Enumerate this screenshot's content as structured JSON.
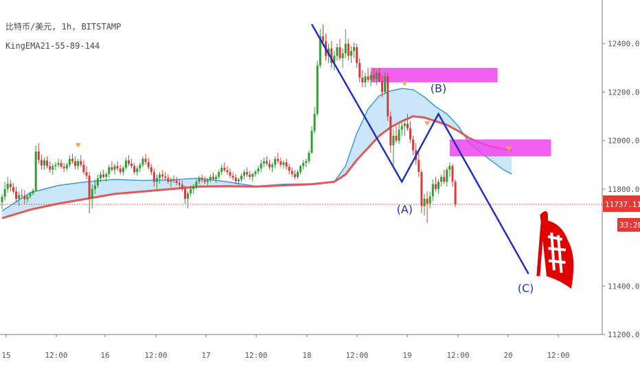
{
  "header": {
    "symbol_line": "比特币/美元, 1h, BITSTAMP",
    "indicator_line": "KingEMA21-55-89-144"
  },
  "price_badge": {
    "value": "11737.11",
    "countdown": "33:28",
    "color": "#e53935"
  },
  "chart_data": {
    "type": "candlestick",
    "x_axis_labels": [
      "15",
      "12:00",
      "16",
      "12:00",
      "17",
      "12:00",
      "18",
      "12:00",
      "19",
      "12:00",
      "20",
      "12:00"
    ],
    "y_axis_labels": [
      "12400.00",
      "12200.00",
      "12000.00",
      "11800.00",
      "11400.00",
      "11200.00"
    ],
    "ylim": [
      11200,
      12580
    ],
    "last_price": 11737.11,
    "series": [
      {
        "name": "EMA fast",
        "color": "#3a9ad9",
        "points": [
          [
            0,
            11710
          ],
          [
            10,
            11785
          ],
          [
            20,
            11815
          ],
          [
            30,
            11830
          ],
          [
            40,
            11840
          ],
          [
            50,
            11835
          ],
          [
            60,
            11838
          ],
          [
            70,
            11845
          ],
          [
            80,
            11830
          ],
          [
            90,
            11812
          ],
          [
            100,
            11820
          ],
          [
            110,
            11822
          ],
          [
            118,
            11830
          ],
          [
            122,
            11895
          ],
          [
            126,
            12030
          ],
          [
            130,
            12130
          ],
          [
            134,
            12185
          ],
          [
            138,
            12205
          ],
          [
            142,
            12215
          ],
          [
            146,
            12210
          ],
          [
            150,
            12180
          ],
          [
            154,
            12140
          ],
          [
            158,
            12110
          ],
          [
            162,
            12060
          ],
          [
            166,
            11990
          ],
          [
            170,
            11950
          ],
          [
            174,
            11915
          ],
          [
            178,
            11880
          ],
          [
            181,
            11862
          ]
        ]
      },
      {
        "name": "EMA slow",
        "color": "#e05858",
        "points": [
          [
            0,
            11680
          ],
          [
            10,
            11715
          ],
          [
            20,
            11740
          ],
          [
            30,
            11760
          ],
          [
            40,
            11780
          ],
          [
            50,
            11790
          ],
          [
            60,
            11800
          ],
          [
            70,
            11810
          ],
          [
            80,
            11812
          ],
          [
            90,
            11810
          ],
          [
            100,
            11815
          ],
          [
            110,
            11820
          ],
          [
            118,
            11830
          ],
          [
            122,
            11860
          ],
          [
            126,
            11920
          ],
          [
            130,
            11970
          ],
          [
            134,
            12020
          ],
          [
            138,
            12055
          ],
          [
            142,
            12080
          ],
          [
            146,
            12100
          ],
          [
            150,
            12095
          ],
          [
            154,
            12080
          ],
          [
            158,
            12065
          ],
          [
            162,
            12040
          ],
          [
            166,
            12010
          ],
          [
            170,
            11990
          ],
          [
            174,
            11975
          ],
          [
            178,
            11965
          ],
          [
            181,
            11960
          ]
        ]
      }
    ],
    "markers": [
      {
        "x": 27,
        "y": 11990
      },
      {
        "x": 143,
        "y": 12245
      },
      {
        "x": 151,
        "y": 12080
      },
      {
        "x": 180,
        "y": 11975
      }
    ],
    "zones": [
      {
        "color": "#ee44ee",
        "x0": 131,
        "x1": 176,
        "y0": 12240,
        "y1": 12300
      },
      {
        "color": "#ee44ee",
        "x0": 159,
        "x1": 195,
        "y0": 11935,
        "y1": 12005
      }
    ],
    "wave_line": {
      "color": "#1f2fc0",
      "points": [
        [
          110,
          12480
        ],
        [
          142,
          11830
        ],
        [
          155,
          12110
        ],
        [
          187,
          11450
        ]
      ]
    },
    "wave_labels": [
      {
        "text": "(A)",
        "x": 143,
        "y": 11700
      },
      {
        "text": "(B)",
        "x": 155,
        "y": 12200
      },
      {
        "text": "(C)",
        "x": 186,
        "y": 11375
      }
    ],
    "candles": [
      [
        11745,
        11778,
        11718,
        11768
      ],
      [
        11768,
        11830,
        11752,
        11800
      ],
      [
        11800,
        11850,
        11785,
        11822
      ],
      [
        11822,
        11840,
        11790,
        11808
      ],
      [
        11808,
        11825,
        11780,
        11790
      ],
      [
        11790,
        11810,
        11745,
        11760
      ],
      [
        11760,
        11790,
        11730,
        11775
      ],
      [
        11775,
        11800,
        11760,
        11772
      ],
      [
        11772,
        11795,
        11740,
        11758
      ],
      [
        11758,
        11780,
        11745,
        11770
      ],
      [
        11770,
        11790,
        11760,
        11782
      ],
      [
        11782,
        11802,
        11774,
        11794
      ],
      [
        11794,
        11980,
        11790,
        11955
      ],
      [
        11955,
        11990,
        11905,
        11920
      ],
      [
        11920,
        11942,
        11880,
        11898
      ],
      [
        11898,
        11930,
        11880,
        11918
      ],
      [
        11918,
        11935,
        11885,
        11895
      ],
      [
        11895,
        11915,
        11868,
        11880
      ],
      [
        11880,
        11905,
        11860,
        11895
      ],
      [
        11895,
        11912,
        11878,
        11900
      ],
      [
        11900,
        11925,
        11890,
        11908
      ],
      [
        11908,
        11922,
        11885,
        11892
      ],
      [
        11892,
        11908,
        11870,
        11885
      ],
      [
        11885,
        11910,
        11875,
        11900
      ],
      [
        11900,
        11940,
        11890,
        11925
      ],
      [
        11925,
        11945,
        11905,
        11915
      ],
      [
        11915,
        11935,
        11880,
        11895
      ],
      [
        11895,
        11925,
        11880,
        11915
      ],
      [
        11915,
        11940,
        11890,
        11900
      ],
      [
        11900,
        11920,
        11860,
        11870
      ],
      [
        11870,
        11895,
        11840,
        11855
      ],
      [
        11855,
        11870,
        11700,
        11760
      ],
      [
        11760,
        11820,
        11720,
        11800
      ],
      [
        11800,
        11840,
        11780,
        11815
      ],
      [
        11815,
        11860,
        11805,
        11845
      ],
      [
        11845,
        11872,
        11830,
        11860
      ],
      [
        11860,
        11880,
        11845,
        11850
      ],
      [
        11850,
        11870,
        11830,
        11862
      ],
      [
        11862,
        11900,
        11848,
        11890
      ],
      [
        11890,
        11915,
        11872,
        11880
      ],
      [
        11880,
        11905,
        11860,
        11895
      ],
      [
        11895,
        11915,
        11875,
        11885
      ],
      [
        11885,
        11900,
        11860,
        11870
      ],
      [
        11870,
        11895,
        11855,
        11888
      ],
      [
        11888,
        11930,
        11880,
        11918
      ],
      [
        11918,
        11940,
        11895,
        11905
      ],
      [
        11905,
        11925,
        11885,
        11895
      ],
      [
        11895,
        11908,
        11860,
        11870
      ],
      [
        11870,
        11895,
        11855,
        11885
      ],
      [
        11885,
        11910,
        11870,
        11900
      ],
      [
        11900,
        11935,
        11890,
        11925
      ],
      [
        11925,
        11945,
        11900,
        11912
      ],
      [
        11912,
        11928,
        11880,
        11890
      ],
      [
        11890,
        11905,
        11858,
        11870
      ],
      [
        11870,
        11885,
        11810,
        11830
      ],
      [
        11830,
        11860,
        11800,
        11845
      ],
      [
        11845,
        11870,
        11822,
        11860
      ],
      [
        11860,
        11878,
        11840,
        11852
      ],
      [
        11852,
        11870,
        11835,
        11846
      ],
      [
        11846,
        11860,
        11820,
        11830
      ],
      [
        11830,
        11848,
        11808,
        11840
      ],
      [
        11840,
        11856,
        11825,
        11835
      ],
      [
        11835,
        11850,
        11815,
        11825
      ],
      [
        11825,
        11842,
        11805,
        11818
      ],
      [
        11818,
        11835,
        11790,
        11800
      ],
      [
        11800,
        11815,
        11740,
        11760
      ],
      [
        11760,
        11790,
        11720,
        11782
      ],
      [
        11782,
        11815,
        11770,
        11800
      ],
      [
        11800,
        11820,
        11780,
        11812
      ],
      [
        11812,
        11840,
        11800,
        11830
      ],
      [
        11830,
        11855,
        11820,
        11845
      ],
      [
        11845,
        11860,
        11828,
        11838
      ],
      [
        11838,
        11852,
        11820,
        11830
      ],
      [
        11830,
        11845,
        11815,
        11838
      ],
      [
        11838,
        11860,
        11828,
        11850
      ],
      [
        11850,
        11868,
        11835,
        11842
      ],
      [
        11842,
        11860,
        11825,
        11850
      ],
      [
        11850,
        11880,
        11840,
        11870
      ],
      [
        11870,
        11900,
        11858,
        11888
      ],
      [
        11888,
        11910,
        11870,
        11878
      ],
      [
        11878,
        11895,
        11860,
        11870
      ],
      [
        11870,
        11885,
        11845,
        11855
      ],
      [
        11855,
        11870,
        11835,
        11848
      ],
      [
        11848,
        11862,
        11820,
        11832
      ],
      [
        11832,
        11848,
        11815,
        11840
      ],
      [
        11840,
        11865,
        11828,
        11855
      ],
      [
        11855,
        11880,
        11840,
        11870
      ],
      [
        11870,
        11890,
        11850,
        11860
      ],
      [
        11860,
        11875,
        11840,
        11850
      ],
      [
        11850,
        11868,
        11830,
        11862
      ],
      [
        11862,
        11880,
        11850,
        11872
      ],
      [
        11872,
        11895,
        11860,
        11885
      ],
      [
        11885,
        11920,
        11870,
        11905
      ],
      [
        11905,
        11930,
        11890,
        11915
      ],
      [
        11915,
        11935,
        11895,
        11905
      ],
      [
        11905,
        11920,
        11880,
        11890
      ],
      [
        11890,
        11910,
        11870,
        11900
      ],
      [
        11900,
        11935,
        11885,
        11925
      ],
      [
        11925,
        11950,
        11905,
        11915
      ],
      [
        11915,
        11930,
        11890,
        11900
      ],
      [
        11900,
        11918,
        11885,
        11910
      ],
      [
        11910,
        11925,
        11880,
        11892
      ],
      [
        11892,
        11905,
        11860,
        11875
      ],
      [
        11875,
        11890,
        11850,
        11862
      ],
      [
        11862,
        11878,
        11840,
        11850
      ],
      [
        11850,
        11880,
        11842,
        11870
      ],
      [
        11870,
        11900,
        11860,
        11895
      ],
      [
        11895,
        11920,
        11880,
        11908
      ],
      [
        11908,
        11925,
        11890,
        11915
      ],
      [
        11915,
        11960,
        11905,
        11950
      ],
      [
        11950,
        12060,
        11945,
        12040
      ],
      [
        12040,
        12140,
        12030,
        12110
      ],
      [
        12110,
        12330,
        12100,
        12310
      ],
      [
        12310,
        12460,
        12300,
        12430
      ],
      [
        12430,
        12480,
        12390,
        12410
      ],
      [
        12410,
        12440,
        12330,
        12350
      ],
      [
        12350,
        12400,
        12320,
        12380
      ],
      [
        12380,
        12410,
        12300,
        12320
      ],
      [
        12320,
        12370,
        12290,
        12350
      ],
      [
        12350,
        12400,
        12330,
        12385
      ],
      [
        12385,
        12420,
        12330,
        12340
      ],
      [
        12340,
        12380,
        12300,
        12360
      ],
      [
        12360,
        12460,
        12340,
        12400
      ],
      [
        12400,
        12420,
        12330,
        12350
      ],
      [
        12350,
        12390,
        12320,
        12370
      ],
      [
        12370,
        12405,
        12340,
        12385
      ],
      [
        12385,
        12400,
        12300,
        12320
      ],
      [
        12320,
        12340,
        12240,
        12260
      ],
      [
        12260,
        12290,
        12220,
        12240
      ],
      [
        12240,
        12280,
        12220,
        12265
      ],
      [
        12265,
        12300,
        12240,
        12250
      ],
      [
        12250,
        12285,
        12225,
        12270
      ],
      [
        12270,
        12300,
        12240,
        12255
      ],
      [
        12255,
        12290,
        12230,
        12280
      ],
      [
        12280,
        12300,
        12240,
        12245
      ],
      [
        12245,
        12270,
        12180,
        12200
      ],
      [
        12200,
        12280,
        12190,
        12265
      ],
      [
        12265,
        12280,
        12080,
        12100
      ],
      [
        12100,
        12120,
        11950,
        11980
      ],
      [
        11980,
        12050,
        11900,
        12020
      ],
      [
        12020,
        12060,
        11990,
        12000
      ],
      [
        12000,
        12070,
        11985,
        12045
      ],
      [
        12045,
        12080,
        12020,
        12060
      ],
      [
        12060,
        12090,
        12020,
        12070
      ],
      [
        12070,
        12110,
        12040,
        12050
      ],
      [
        12050,
        12080,
        11990,
        12005
      ],
      [
        12005,
        12020,
        11940,
        11960
      ],
      [
        11960,
        11990,
        11900,
        11920
      ],
      [
        11920,
        11950,
        11850,
        11870
      ],
      [
        11870,
        11880,
        11700,
        11730
      ],
      [
        11730,
        11780,
        11690,
        11760
      ],
      [
        11760,
        11790,
        11660,
        11740
      ],
      [
        11740,
        11790,
        11720,
        11770
      ],
      [
        11770,
        11840,
        11750,
        11820
      ],
      [
        11820,
        11850,
        11790,
        11800
      ],
      [
        11800,
        11840,
        11780,
        11830
      ],
      [
        11830,
        11860,
        11810,
        11850
      ],
      [
        11850,
        11880,
        11820,
        11830
      ],
      [
        11830,
        11890,
        11810,
        11880
      ],
      [
        11880,
        11910,
        11850,
        11895
      ],
      [
        11895,
        11905,
        11810,
        11830
      ],
      [
        11830,
        11840,
        11725,
        11737
      ]
    ]
  }
}
